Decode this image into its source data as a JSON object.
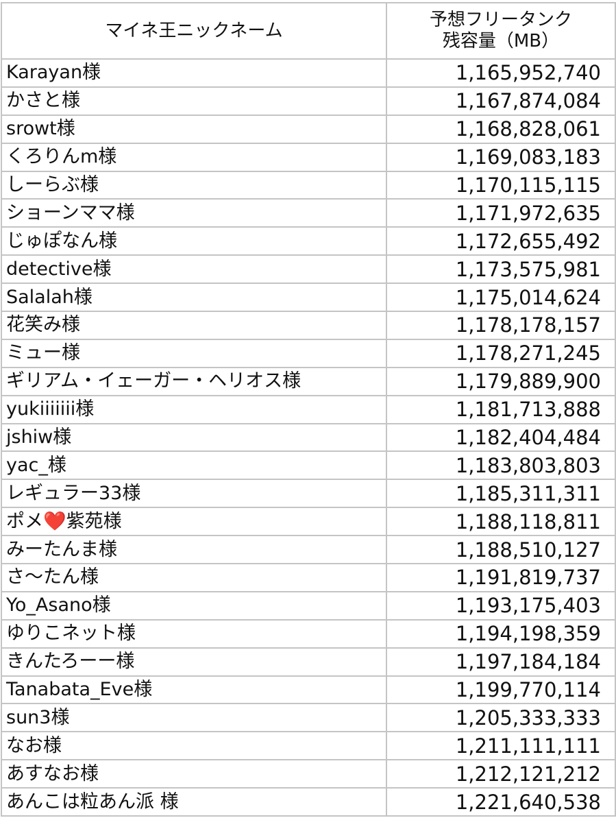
{
  "table": {
    "headers": [
      "マイネ王ニックネーム",
      "予想フリータンク\n残容量（MB）"
    ],
    "header_lines": [
      "予想フリータンク",
      "残容量（MB）"
    ],
    "rows": [
      {
        "name": "Karayan様",
        "value": "1,165,952,740"
      },
      {
        "name": "かさと様",
        "value": "1,167,874,084"
      },
      {
        "name": "srowt様",
        "value": "1,168,828,061"
      },
      {
        "name": "くろりんm様",
        "value": "1,169,083,183"
      },
      {
        "name": "しーらぶ様",
        "value": "1,170,115,115"
      },
      {
        "name": "ショーンママ様",
        "value": "1,171,972,635"
      },
      {
        "name": "じゅぽなん様",
        "value": "1,172,655,492"
      },
      {
        "name": "detective様",
        "value": "1,173,575,981"
      },
      {
        "name": "Salalah様",
        "value": "1,175,014,624"
      },
      {
        "name": "花笑み様",
        "value": "1,178,178,157"
      },
      {
        "name": "ミュー様",
        "value": "1,178,271,245"
      },
      {
        "name": "ギリアム・イェーガー・ヘリオス様",
        "value": "1,179,889,900"
      },
      {
        "name": "yukiiiiiii様",
        "value": "1,181,713,888"
      },
      {
        "name": "jshiw様",
        "value": "1,182,404,484"
      },
      {
        "name": "yac_様",
        "value": "1,183,803,803"
      },
      {
        "name": "レギュラー33様",
        "value": "1,185,311,311"
      },
      {
        "name": "ポメ❤️紫苑様",
        "value": "1,188,118,811"
      },
      {
        "name": "みーたんま様",
        "value": "1,188,510,127"
      },
      {
        "name": "さ〜たん様",
        "value": "1,191,819,737"
      },
      {
        "name": "Yo_Asano様",
        "value": "1,193,175,403"
      },
      {
        "name": "ゆりこネット様",
        "value": "1,194,198,359"
      },
      {
        "name": "きんたろーー様",
        "value": "1,197,184,184"
      },
      {
        "name": "Tanabata_Eve様",
        "value": "1,199,770,114"
      },
      {
        "name": "sun3様",
        "value": "1,205,333,333"
      },
      {
        "name": "なお様",
        "value": "1,211,111,111"
      },
      {
        "name": "あすなお様",
        "value": "1,212,121,212"
      },
      {
        "name": "あんこは粒あん派 様",
        "value": "1,221,640,538"
      }
    ]
  }
}
